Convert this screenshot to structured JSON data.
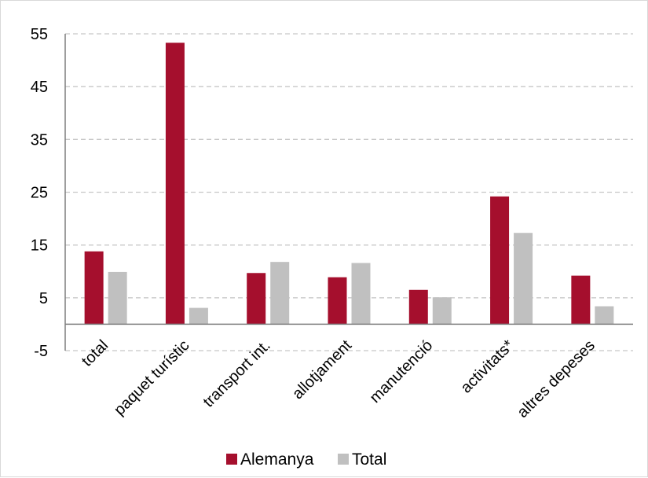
{
  "chart_data": {
    "type": "bar",
    "categories": [
      "total",
      "paquet turístic",
      "transport int.",
      "allotjament",
      "manutenció",
      "activitats*",
      "altres depeses"
    ],
    "series": [
      {
        "name": "Alemanya",
        "values": [
          13.8,
          53.3,
          9.7,
          8.9,
          6.5,
          24.2,
          9.2
        ],
        "color": "#a50f2d"
      },
      {
        "name": "Total",
        "values": [
          9.9,
          3.1,
          11.8,
          11.6,
          5.1,
          17.3,
          3.4
        ],
        "color": "#c0c0c0"
      }
    ],
    "yticks": [
      "-5",
      "5",
      "15",
      "25",
      "35",
      "45",
      "55"
    ],
    "ylim": [
      -5,
      55
    ],
    "grid": true,
    "legend_position": "bottom"
  }
}
